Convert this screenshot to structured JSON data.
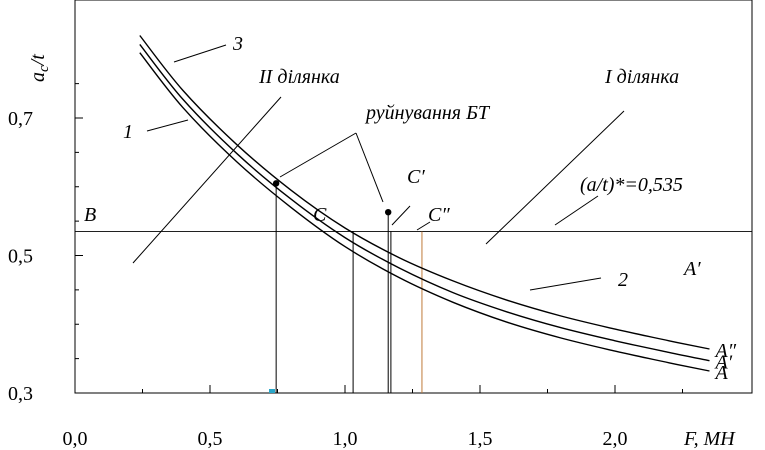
{
  "chart_data": {
    "type": "line",
    "xlabel": "F, МН",
    "ylabel": "a",
    "ylabel_sub": "c",
    "ylabel_tail": "/t",
    "xlim": [
      0.0,
      2.5
    ],
    "ylim": [
      0.3,
      0.8
    ],
    "x_ticks": [
      {
        "value": 0.0,
        "label": "0,0"
      },
      {
        "value": 0.5,
        "label": "0,5"
      },
      {
        "value": 1.0,
        "label": "1,0"
      },
      {
        "value": 1.5,
        "label": "1,5"
      },
      {
        "value": 2.0,
        "label": "2,0"
      }
    ],
    "y_ticks": [
      {
        "value": 0.3,
        "label": "0,3"
      },
      {
        "value": 0.5,
        "label": "0,5"
      },
      {
        "value": 0.7,
        "label": "0,7"
      }
    ],
    "grid": false,
    "threshold": {
      "y": 0.535,
      "label": "(a/t)*=0,535"
    },
    "series": [
      {
        "name": "1",
        "end_label": "A",
        "color": "#000000",
        "points": [
          [
            0.24,
            0.795
          ],
          [
            0.4,
            0.715
          ],
          [
            0.6,
            0.636
          ],
          [
            0.8,
            0.57
          ],
          [
            1.0,
            0.513
          ],
          [
            1.2,
            0.468
          ],
          [
            1.4,
            0.432
          ],
          [
            1.6,
            0.403
          ],
          [
            1.8,
            0.38
          ],
          [
            2.0,
            0.361
          ],
          [
            2.2,
            0.344
          ],
          [
            2.35,
            0.332
          ]
        ]
      },
      {
        "name": "2",
        "end_label": "A′",
        "color": "#000000",
        "points": [
          [
            0.24,
            0.807
          ],
          [
            0.4,
            0.727
          ],
          [
            0.6,
            0.648
          ],
          [
            0.8,
            0.582
          ],
          [
            1.0,
            0.526
          ],
          [
            1.2,
            0.482
          ],
          [
            1.4,
            0.446
          ],
          [
            1.6,
            0.418
          ],
          [
            1.8,
            0.395
          ],
          [
            2.0,
            0.376
          ],
          [
            2.2,
            0.359
          ],
          [
            2.35,
            0.347
          ]
        ]
      },
      {
        "name": "3",
        "end_label": "A″",
        "color": "#000000",
        "points": [
          [
            0.24,
            0.82
          ],
          [
            0.4,
            0.74
          ],
          [
            0.6,
            0.661
          ],
          [
            0.8,
            0.595
          ],
          [
            1.0,
            0.54
          ],
          [
            1.2,
            0.497
          ],
          [
            1.4,
            0.463
          ],
          [
            1.6,
            0.435
          ],
          [
            1.8,
            0.412
          ],
          [
            2.0,
            0.393
          ],
          [
            2.2,
            0.376
          ],
          [
            2.35,
            0.364
          ]
        ]
      }
    ],
    "verticals": [
      {
        "x": 0.745,
        "y_top": 0.605,
        "color": "#000000"
      },
      {
        "x": 1.03,
        "y_top": 0.535,
        "color": "#000000"
      },
      {
        "x": 1.16,
        "y_top": 0.563,
        "color": "#000000"
      },
      {
        "x": 1.17,
        "y_top": 0.535,
        "color": "#000000"
      },
      {
        "x": 1.285,
        "y_top": 0.535,
        "color": "#c07a3a"
      }
    ],
    "failure_points": [
      {
        "x": 0.745,
        "y": 0.605
      },
      {
        "x": 1.16,
        "y": 0.563
      }
    ],
    "annotations": {
      "region_II": "II ділянка",
      "region_I": "I ділянка",
      "failure": "руйнування БТ",
      "point_B": "B",
      "point_C": "C",
      "point_C1": "C′",
      "point_C2": "C″",
      "marker_A1": "A′",
      "curve_1": "1",
      "curve_2": "2",
      "curve_3": "3"
    }
  }
}
